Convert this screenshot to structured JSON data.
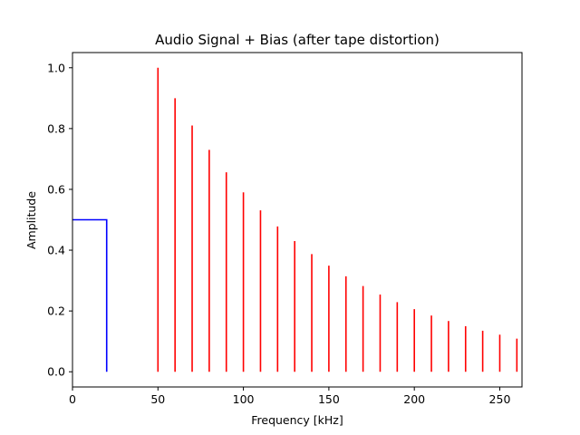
{
  "chart_data": {
    "type": "line",
    "title": "Audio Signal + Bias (after tape distortion)",
    "xlabel": "Frequency [kHz]",
    "ylabel": "Amplitude",
    "xlim": [
      0,
      263
    ],
    "ylim": [
      -0.05,
      1.05
    ],
    "xticks": [
      0,
      50,
      100,
      150,
      200,
      250
    ],
    "yticks": [
      0.0,
      0.2,
      0.4,
      0.6,
      0.8,
      1.0
    ],
    "xtick_labels": [
      "0",
      "50",
      "100",
      "150",
      "200",
      "250"
    ],
    "ytick_labels": [
      "0.0",
      "0.2",
      "0.4",
      "0.6",
      "0.8",
      "1.0"
    ],
    "grid": false,
    "series": [
      {
        "kind": "line",
        "color": "#0000ff",
        "x": [
          0,
          20,
          20
        ],
        "y": [
          0.5,
          0.5,
          0.0
        ]
      },
      {
        "kind": "stems",
        "color": "#ff0000",
        "x": [
          50,
          60,
          70,
          80,
          90,
          100,
          110,
          120,
          130,
          140,
          150,
          160,
          170,
          180,
          190,
          200,
          210,
          220,
          230,
          240,
          250,
          260
        ],
        "y": [
          1.0,
          0.9,
          0.81,
          0.73,
          0.656,
          0.59,
          0.531,
          0.478,
          0.43,
          0.387,
          0.349,
          0.314,
          0.282,
          0.254,
          0.229,
          0.206,
          0.185,
          0.167,
          0.15,
          0.135,
          0.122,
          0.109
        ]
      }
    ]
  }
}
